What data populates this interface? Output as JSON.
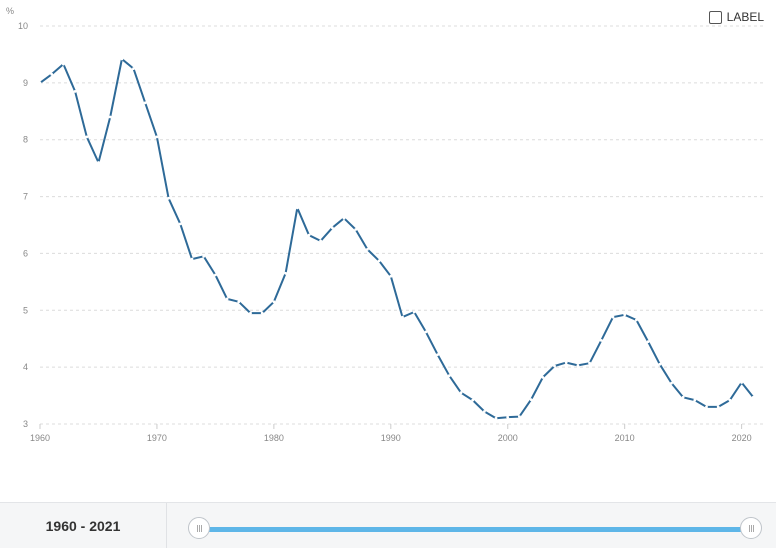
{
  "chart_data": {
    "type": "line",
    "ylabel": "%",
    "ylim": [
      3,
      10
    ],
    "xlim": [
      1960,
      2022
    ],
    "yticks": [
      3,
      4,
      5,
      6,
      7,
      8,
      9,
      10
    ],
    "xticks": [
      1960,
      1970,
      1980,
      1990,
      2000,
      2010,
      2020
    ],
    "grid": true,
    "color": "#2e6a98",
    "series": [
      {
        "x": [
          1960,
          1961,
          1962,
          1963,
          1964,
          1965,
          1966,
          1967,
          1968,
          1969,
          1970,
          1971,
          1972,
          1973,
          1974,
          1975,
          1976,
          1977,
          1978,
          1979,
          1980,
          1981,
          1982,
          1983,
          1984,
          1985,
          1986,
          1987,
          1988,
          1989,
          1990,
          1991,
          1992,
          1993,
          1994,
          1995,
          1996,
          1997,
          1998,
          1999,
          2000,
          2001,
          2002,
          2003,
          2004,
          2005,
          2006,
          2007,
          2008,
          2009,
          2010,
          2011,
          2012,
          2013,
          2014,
          2015,
          2016,
          2017,
          2018,
          2019,
          2020,
          2021
        ],
        "values": [
          9.0,
          9.15,
          9.33,
          8.85,
          8.05,
          7.6,
          8.4,
          9.42,
          9.25,
          8.65,
          8.05,
          6.97,
          6.52,
          5.9,
          5.95,
          5.62,
          5.2,
          5.15,
          4.95,
          4.95,
          5.15,
          5.65,
          6.8,
          6.32,
          6.22,
          6.45,
          6.62,
          6.42,
          6.07,
          5.87,
          5.6,
          4.88,
          4.97,
          4.62,
          4.22,
          3.85,
          3.55,
          3.42,
          3.22,
          3.1,
          3.12,
          3.13,
          3.43,
          3.82,
          4.02,
          4.08,
          4.03,
          4.07,
          4.47,
          4.88,
          4.92,
          4.83,
          4.45,
          4.05,
          3.72,
          3.47,
          3.42,
          3.3,
          3.3,
          3.42,
          3.73,
          3.47
        ]
      }
    ]
  },
  "legend": {
    "label_toggle": "LABEL"
  },
  "footer": {
    "range_label": "1960 - 2021"
  }
}
